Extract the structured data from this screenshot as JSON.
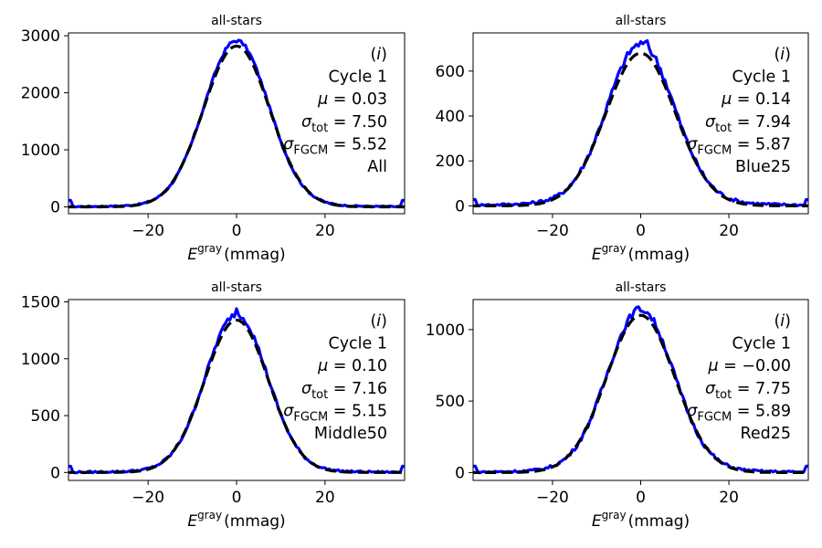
{
  "chart_data": [
    {
      "type": "line",
      "title": "all-stars",
      "xlabel": "(mmag)",
      "xlabel_symbol": "E",
      "xlabel_sup": "gray",
      "xlim": [
        -38,
        38
      ],
      "ylim": [
        -120,
        3050
      ],
      "xticks": [
        -20,
        0,
        20
      ],
      "yticks": [
        0,
        1000,
        2000,
        3000
      ],
      "grid": false,
      "annotation": {
        "panel": "(i)",
        "cycle": "Cycle 1",
        "mu": "μ = 0.03",
        "sigma_tot": "σtot = 7.50",
        "sigma_fgcm": "σFGCM = 5.52",
        "subset": "All"
      },
      "series": [
        {
          "color": "#0000ff",
          "style": "solid",
          "peak": 2880,
          "sigma": 7.3,
          "tail": 0.012,
          "noise": 0.015
        },
        {
          "color": "#000000",
          "style": "dashed",
          "peak": 2820,
          "sigma": 7.5
        }
      ]
    },
    {
      "type": "line",
      "title": "all-stars",
      "xlabel": "(mmag)",
      "xlabel_symbol": "E",
      "xlabel_sup": "gray",
      "xlim": [
        -38,
        38
      ],
      "ylim": [
        -35,
        770
      ],
      "xticks": [
        -20,
        0,
        20
      ],
      "yticks": [
        0,
        200,
        400,
        600
      ],
      "grid": false,
      "annotation": {
        "panel": "(i)",
        "cycle": "Cycle 1",
        "mu": "μ = 0.14",
        "sigma_tot": "σtot = 7.94",
        "sigma_fgcm": "σFGCM = 5.87",
        "subset": "Blue25"
      },
      "series": [
        {
          "color": "#0000ff",
          "style": "solid",
          "peak": 700,
          "sigma": 7.6,
          "tail": 0.03,
          "noise": 0.035,
          "spike": [
            1.5,
            735
          ]
        },
        {
          "color": "#000000",
          "style": "dashed",
          "peak": 680,
          "sigma": 7.9
        }
      ]
    },
    {
      "type": "line",
      "title": "all-stars",
      "xlabel": "(mmag)",
      "xlabel_symbol": "E",
      "xlabel_sup": "gray",
      "xlim": [
        -38,
        38
      ],
      "ylim": [
        -70,
        1520
      ],
      "xticks": [
        -20,
        0,
        20
      ],
      "yticks": [
        0,
        500,
        1000,
        1500
      ],
      "grid": false,
      "annotation": {
        "panel": "(i)",
        "cycle": "Cycle 1",
        "mu": "μ = 0.10",
        "sigma_tot": "σtot = 7.16",
        "sigma_fgcm": "σFGCM = 5.15",
        "subset": "Middle50"
      },
      "series": [
        {
          "color": "#0000ff",
          "style": "solid",
          "peak": 1370,
          "sigma": 7.0,
          "tail": 0.015,
          "noise": 0.025,
          "spike": [
            0,
            1440
          ]
        },
        {
          "color": "#000000",
          "style": "dashed",
          "peak": 1340,
          "sigma": 7.2
        }
      ]
    },
    {
      "type": "line",
      "title": "all-stars",
      "xlabel": "(mmag)",
      "xlabel_symbol": "E",
      "xlabel_sup": "gray",
      "xlim": [
        -38,
        38
      ],
      "ylim": [
        -55,
        1210
      ],
      "xticks": [
        -20,
        0,
        20
      ],
      "yticks": [
        0,
        500,
        1000
      ],
      "grid": false,
      "annotation": {
        "panel": "(i)",
        "cycle": "Cycle 1",
        "mu": "μ = −0.00",
        "sigma_tot": "σtot = 7.75",
        "sigma_fgcm": "σFGCM = 5.89",
        "subset": "Red25"
      },
      "series": [
        {
          "color": "#0000ff",
          "style": "solid",
          "peak": 1120,
          "sigma": 7.5,
          "tail": 0.02,
          "noise": 0.03,
          "spike": [
            -1,
            1155
          ]
        },
        {
          "color": "#000000",
          "style": "dashed",
          "peak": 1100,
          "sigma": 7.75
        }
      ]
    }
  ]
}
